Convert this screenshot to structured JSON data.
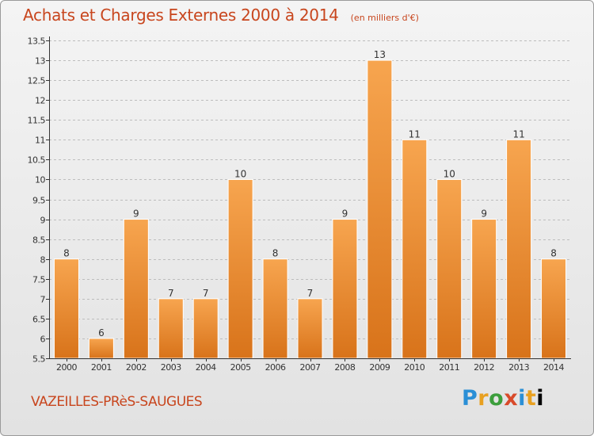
{
  "title": "Achats et Charges Externes 2000 à 2014",
  "unit": "(en milliers d'€)",
  "commune": "VAZEILLES-PRèS-SAUGUES",
  "logo": "Proxiti",
  "colors": {
    "title": "#c8461e",
    "bar_light": "#f7a54f",
    "bar_dark": "#d8731a",
    "grid": "#bdbdbd",
    "axis": "#333333",
    "label": "#333333"
  },
  "chart_data": {
    "type": "bar",
    "title": "Achats et Charges Externes 2000 à 2014",
    "xlabel": "",
    "ylabel": "",
    "categories": [
      "2000",
      "2001",
      "2002",
      "2003",
      "2004",
      "2005",
      "2006",
      "2007",
      "2008",
      "2009",
      "2010",
      "2011",
      "2012",
      "2013",
      "2014"
    ],
    "values": [
      8,
      6,
      9,
      7,
      7,
      10,
      8,
      7,
      9,
      13,
      11,
      10,
      9,
      11,
      8
    ],
    "ylim": [
      5.5,
      13.5
    ],
    "yticks": [
      "5.5",
      "6",
      "6.5",
      "7",
      "7.5",
      "8",
      "8.5",
      "9",
      "9.5",
      "10",
      "10.5",
      "11",
      "11.5",
      "12",
      "12.5",
      "13",
      "13.5"
    ],
    "grid": true,
    "data_labels": true
  }
}
